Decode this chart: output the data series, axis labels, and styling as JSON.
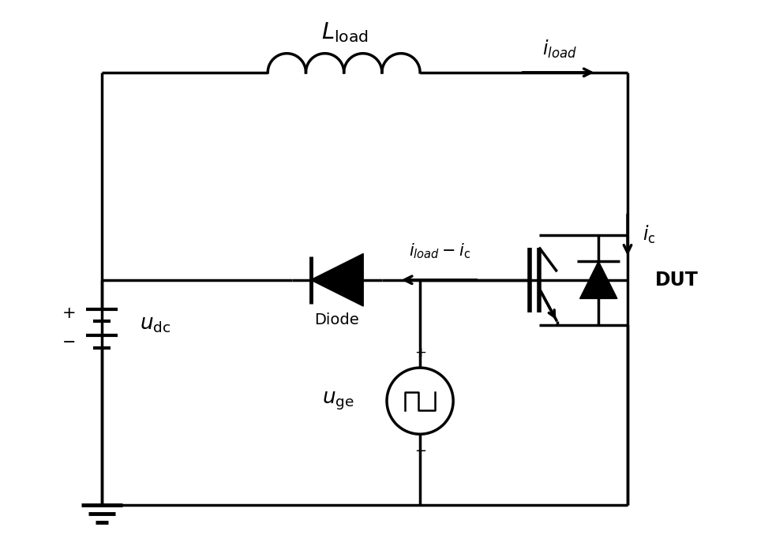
{
  "bg_color": "#ffffff",
  "line_color": "#000000",
  "lw": 2.5,
  "fig_width": 9.59,
  "fig_height": 6.92
}
